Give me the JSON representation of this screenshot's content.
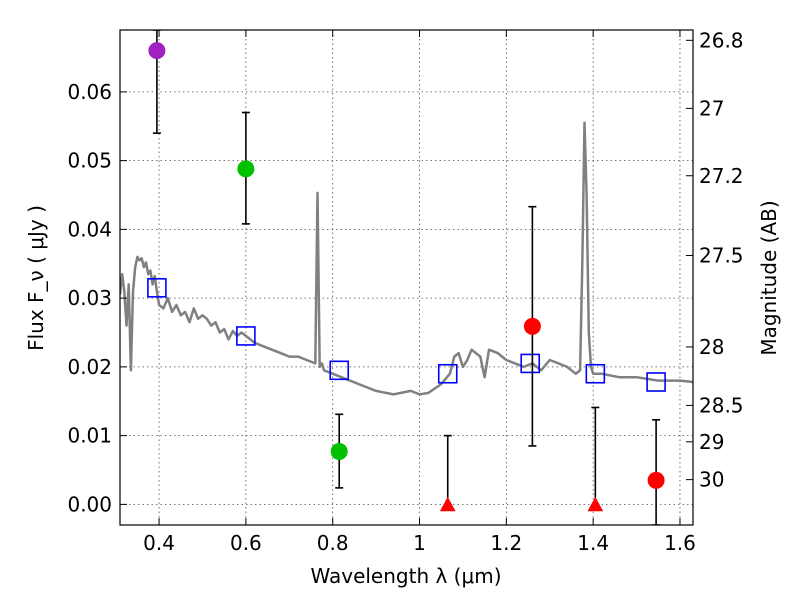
{
  "chart_data": {
    "type": "scatter",
    "title": "",
    "xlabel": "Wavelength  λ (μm)",
    "ylabel": "Flux  F_ν  ( μJy )",
    "ylabel_right": "Magnitude (AB)",
    "xlim": [
      0.31,
      1.63
    ],
    "ylim": [
      -0.003,
      0.069
    ],
    "grid": true,
    "x_ticks": [
      0.4,
      0.6,
      0.8,
      1.0,
      1.2,
      1.4,
      1.6
    ],
    "x_tick_labels": [
      "0.4",
      "0.6",
      "0.8",
      "1",
      "1.2",
      "1.4",
      "1.6"
    ],
    "y_ticks": [
      0.0,
      0.01,
      0.02,
      0.03,
      0.04,
      0.05,
      0.06
    ],
    "y_tick_labels": [
      "0.00",
      "0.01",
      "0.02",
      "0.03",
      "0.04",
      "0.05",
      "0.06"
    ],
    "right_ticks": [
      {
        "flux": 0.0675,
        "label": "26.8"
      },
      {
        "flux": 0.0576,
        "label": "27"
      },
      {
        "flux": 0.0478,
        "label": "27.2"
      },
      {
        "flux": 0.0362,
        "label": "27.5"
      },
      {
        "flux": 0.0229,
        "label": "28"
      },
      {
        "flux": 0.0144,
        "label": "28.5"
      },
      {
        "flux": 0.0091,
        "label": "29"
      },
      {
        "flux": 0.0036,
        "label": "30"
      }
    ],
    "series": [
      {
        "name": "model_spectrum",
        "kind": "line",
        "color": "#808080",
        "x": [
          0.31,
          0.315,
          0.32,
          0.325,
          0.33,
          0.335,
          0.34,
          0.345,
          0.35,
          0.355,
          0.36,
          0.365,
          0.37,
          0.375,
          0.38,
          0.385,
          0.39,
          0.395,
          0.4,
          0.41,
          0.42,
          0.43,
          0.44,
          0.45,
          0.46,
          0.47,
          0.48,
          0.49,
          0.5,
          0.51,
          0.52,
          0.53,
          0.54,
          0.55,
          0.56,
          0.57,
          0.58,
          0.59,
          0.6,
          0.62,
          0.64,
          0.66,
          0.68,
          0.7,
          0.72,
          0.74,
          0.76,
          0.765,
          0.77,
          0.775,
          0.78,
          0.82,
          0.86,
          0.9,
          0.94,
          0.98,
          1.0,
          1.02,
          1.05,
          1.07,
          1.08,
          1.09,
          1.1,
          1.11,
          1.12,
          1.14,
          1.15,
          1.16,
          1.18,
          1.2,
          1.22,
          1.24,
          1.26,
          1.28,
          1.3,
          1.32,
          1.34,
          1.36,
          1.37,
          1.375,
          1.38,
          1.385,
          1.39,
          1.395,
          1.4,
          1.42,
          1.46,
          1.5,
          1.55,
          1.6,
          1.63
        ],
        "y": [
          0.0305,
          0.0335,
          0.031,
          0.026,
          0.032,
          0.0195,
          0.031,
          0.0345,
          0.036,
          0.0355,
          0.0358,
          0.0345,
          0.0352,
          0.0335,
          0.034,
          0.032,
          0.0332,
          0.031,
          0.029,
          0.0285,
          0.03,
          0.028,
          0.029,
          0.0275,
          0.028,
          0.0265,
          0.0285,
          0.027,
          0.0275,
          0.027,
          0.026,
          0.0265,
          0.025,
          0.0255,
          0.024,
          0.0252,
          0.0245,
          0.025,
          0.0245,
          0.0235,
          0.023,
          0.0225,
          0.022,
          0.0215,
          0.0215,
          0.021,
          0.0205,
          0.0453,
          0.02,
          0.0205,
          0.0195,
          0.0185,
          0.0175,
          0.0165,
          0.016,
          0.0165,
          0.016,
          0.0162,
          0.0175,
          0.019,
          0.0215,
          0.022,
          0.02,
          0.021,
          0.0225,
          0.0215,
          0.0185,
          0.0225,
          0.022,
          0.021,
          0.0205,
          0.02,
          0.0205,
          0.0195,
          0.021,
          0.0205,
          0.02,
          0.019,
          0.0195,
          0.035,
          0.0555,
          0.045,
          0.025,
          0.02,
          0.019,
          0.019,
          0.0185,
          0.0185,
          0.018,
          0.018,
          0.0178
        ]
      },
      {
        "name": "model_photometry",
        "kind": "open_square",
        "color": "#0000ff",
        "x": [
          0.395,
          0.6,
          0.815,
          1.065,
          1.255,
          1.405,
          1.545
        ],
        "y": [
          0.0315,
          0.0245,
          0.0195,
          0.019,
          0.0205,
          0.019,
          0.0178
        ]
      },
      {
        "name": "observed",
        "kind": "errorbar",
        "points": [
          {
            "x": 0.395,
            "y": 0.066,
            "err_low": 0.054,
            "err_high": 0.069,
            "marker": "circle",
            "color": "#a020c0"
          },
          {
            "x": 0.6,
            "y": 0.0488,
            "err_low": 0.0408,
            "err_high": 0.057,
            "marker": "circle",
            "color": "#00c000"
          },
          {
            "x": 0.815,
            "y": 0.0077,
            "err_low": 0.0024,
            "err_high": 0.0131,
            "marker": "circle",
            "color": "#00c000"
          },
          {
            "x": 1.065,
            "y": -0.0002,
            "err_low": -0.0002,
            "err_high": 0.01,
            "marker": "triangle",
            "color": "#ff0000"
          },
          {
            "x": 1.26,
            "y": 0.0259,
            "err_low": 0.0085,
            "err_high": 0.0433,
            "marker": "circle",
            "color": "#ff0000"
          },
          {
            "x": 1.405,
            "y": -0.0002,
            "err_low": -0.0002,
            "err_high": 0.0141,
            "marker": "triangle",
            "color": "#ff0000"
          },
          {
            "x": 1.545,
            "y": 0.0035,
            "err_low": -0.003,
            "err_high": 0.0123,
            "marker": "circle",
            "color": "#ff0000"
          }
        ]
      }
    ]
  }
}
